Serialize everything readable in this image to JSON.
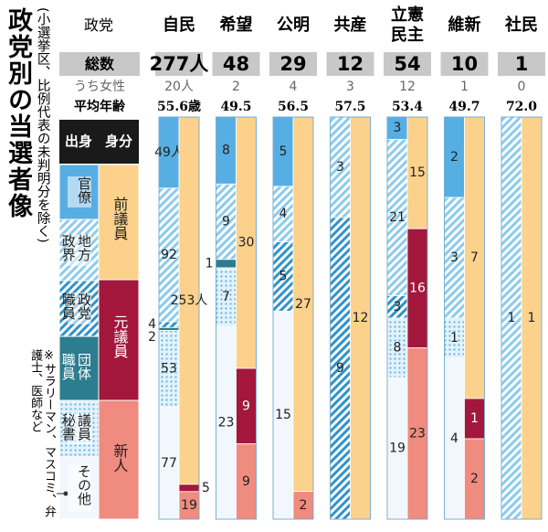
{
  "chart_data": {
    "type": "paired-stack",
    "title": "政党別の当選者像",
    "subtitle": "(小選挙区、比例代表の未判明分を除く)",
    "note": "※サラリーマン、マスコミ、弁護士、医師など",
    "party_label": "政党",
    "categories": [
      "自民",
      "希望",
      "公明",
      "共産",
      "立憲民主",
      "維新",
      "社民"
    ],
    "total_label": "総数",
    "totals": [
      {
        "value": 277,
        "label": "277人"
      },
      48,
      29,
      12,
      54,
      10,
      1
    ],
    "women_label": "うち女性",
    "women": [
      {
        "value": 20,
        "label": "20人"
      },
      2,
      4,
      3,
      12,
      1,
      0
    ],
    "age_label": "平均年齢",
    "ages": [
      {
        "value": 55.6,
        "label": "55.6歳"
      },
      49.5,
      56.5,
      57.5,
      53.4,
      49.7,
      {
        "value": 72,
        "label": "72.0"
      }
    ],
    "background_title": "出身",
    "background": [
      {
        "name": "官僚",
        "color": "#57aee2",
        "values": [
          {
            "value": 49,
            "label": "49人"
          },
          8,
          5,
          0,
          3,
          2,
          0
        ]
      },
      {
        "name": "地方政界",
        "color": "#8ccbec",
        "pattern": "hatch",
        "values": [
          92,
          9,
          4,
          3,
          21,
          3,
          1
        ]
      },
      {
        "name": "政党職員",
        "color": "#2f93c9",
        "pattern": "hatch",
        "values": [
          4,
          0,
          5,
          9,
          3,
          0,
          0
        ]
      },
      {
        "name": "団体職員",
        "color": "#2b7d8f",
        "values": [
          2,
          1,
          0,
          0,
          0,
          0,
          0
        ]
      },
      {
        "name": "議員秘書",
        "color": "#6fbce6",
        "pattern": "dots",
        "values": [
          53,
          7,
          0,
          0,
          8,
          1,
          0
        ]
      },
      {
        "name": "その他",
        "color": "#f1f7fc",
        "values": [
          77,
          23,
          15,
          0,
          19,
          4,
          0
        ]
      }
    ],
    "status_title": "身分",
    "status": [
      {
        "name": "前議員",
        "color": "#fcd18b",
        "values": [
          {
            "value": 253,
            "label": "253人"
          },
          30,
          27,
          12,
          15,
          7,
          1
        ]
      },
      {
        "name": "元議員",
        "color": "#a3173c",
        "values": [
          5,
          9,
          0,
          0,
          16,
          1,
          0
        ]
      },
      {
        "name": "新人",
        "color": "#f08b7f",
        "values": [
          19,
          9,
          2,
          0,
          23,
          2,
          0
        ]
      }
    ]
  }
}
